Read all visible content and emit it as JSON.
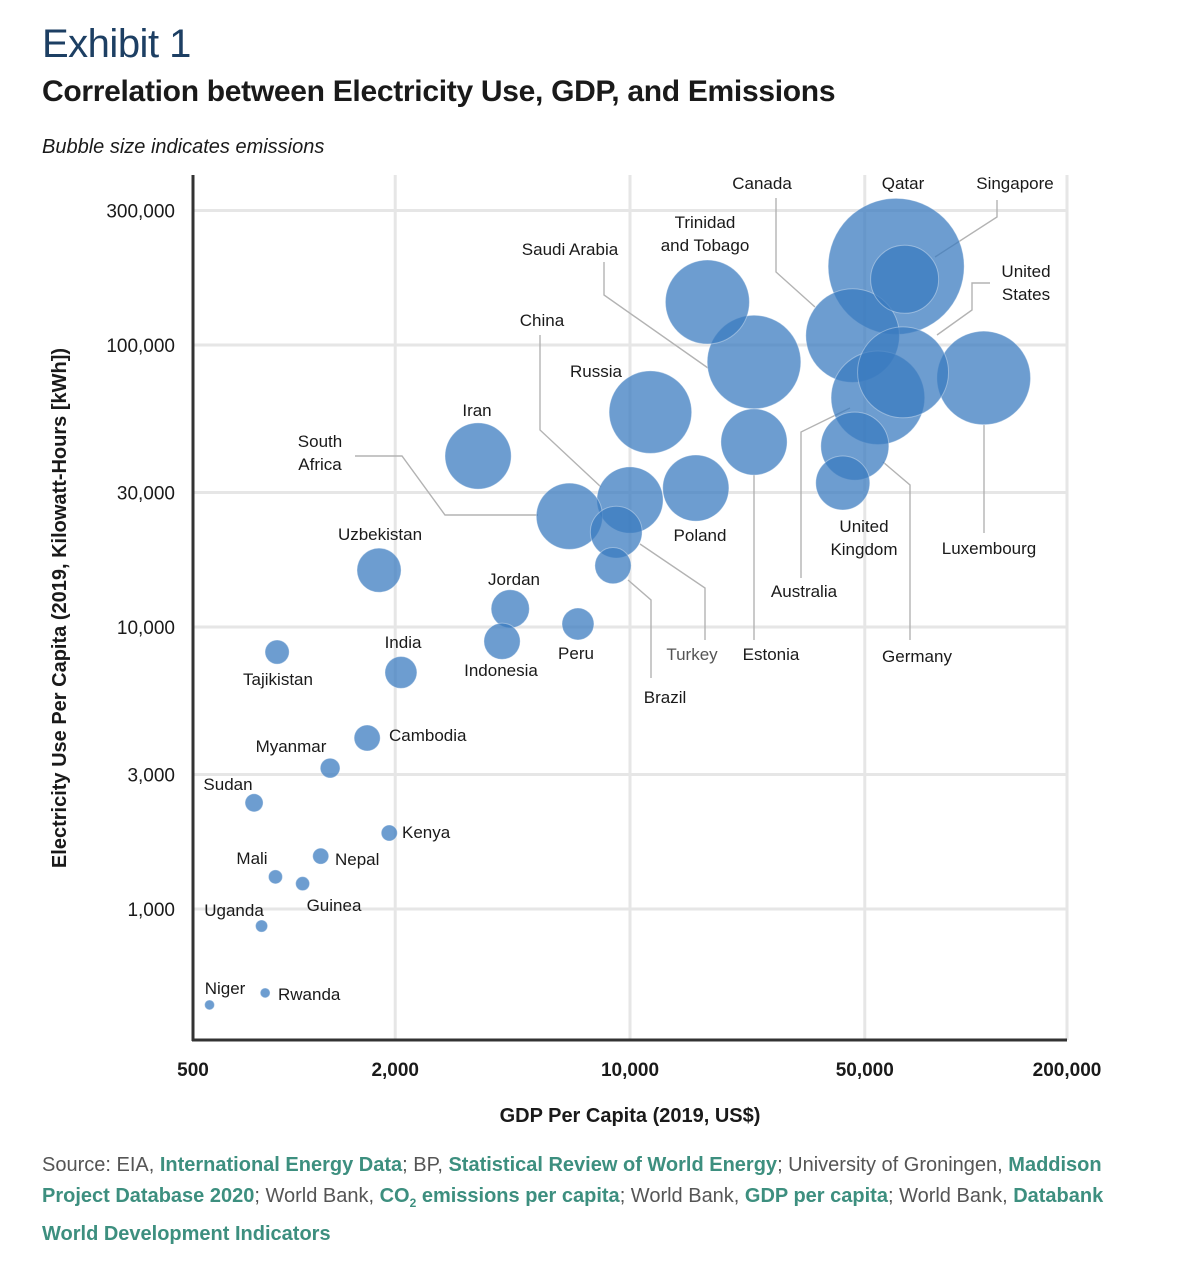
{
  "header": {
    "exhibit": "Exhibit 1",
    "title": "Correlation between Electricity Use, GDP, and Emissions",
    "subtitle": "Bubble size indicates emissions"
  },
  "colors": {
    "bubble": "#3a7bbf",
    "exhibit": "#1d3f63",
    "link": "#3d8f7f",
    "grid": "#e6e6e6",
    "axis": "#333333",
    "leader": "#b3b3b3"
  },
  "chart_data": {
    "type": "scatter",
    "subtype": "bubble",
    "title": "Correlation between Electricity Use, GDP, and Emissions",
    "subtitle": "Bubble size indicates emissions",
    "xlabel": "GDP Per Capita (2019, US$)",
    "ylabel": "Electricity Use Per Capita (2019, Kilowatt-Hours [kWh])",
    "xscale": "log",
    "yscale": "log",
    "xlim": [
      500,
      200000
    ],
    "ylim": [
      340,
      400000
    ],
    "xticks": [
      500,
      2000,
      10000,
      50000,
      200000
    ],
    "xtick_labels": [
      "500",
      "2,000",
      "10,000",
      "50,000",
      "200,000"
    ],
    "yticks": [
      1000,
      3000,
      10000,
      30000,
      100000,
      300000
    ],
    "ytick_labels": [
      "1,000",
      "3,000",
      "10,000",
      "30,000",
      "100,000",
      "300,000"
    ],
    "grid": true,
    "size_note": "bubble area proportional to emissions (relative, estimated)",
    "points": [
      {
        "name": "Qatar",
        "gdp": 62000,
        "kwh": 190000,
        "emissions": 38
      },
      {
        "name": "Singapore",
        "gdp": 65700,
        "kwh": 171000,
        "emissions": 9.5
      },
      {
        "name": "Canada",
        "gdp": 46000,
        "kwh": 108000,
        "emissions": 18
      },
      {
        "name": "United States",
        "gdp": 65000,
        "kwh": 80000,
        "emissions": 17
      },
      {
        "name": "Australia",
        "gdp": 54700,
        "kwh": 65000,
        "emissions": 18
      },
      {
        "name": "Germany",
        "gdp": 46700,
        "kwh": 43800,
        "emissions": 9.5
      },
      {
        "name": "United Kingdom",
        "gdp": 43000,
        "kwh": 32400,
        "emissions": 6
      },
      {
        "name": "Luxembourg",
        "gdp": 113000,
        "kwh": 76400,
        "emissions": 18
      },
      {
        "name": "Trinidad and Tobago",
        "gdp": 17000,
        "kwh": 142000,
        "emissions": 14.5
      },
      {
        "name": "Saudi Arabia",
        "gdp": 23400,
        "kwh": 87000,
        "emissions": 18
      },
      {
        "name": "Russia",
        "gdp": 11500,
        "kwh": 57800,
        "emissions": 14
      },
      {
        "name": "Estonia",
        "gdp": 23400,
        "kwh": 45300,
        "emissions": 9
      },
      {
        "name": "Iran",
        "gdp": 3530,
        "kwh": 40400,
        "emissions": 9
      },
      {
        "name": "China",
        "gdp": 10000,
        "kwh": 28200,
        "emissions": 9
      },
      {
        "name": "South Africa",
        "gdp": 6600,
        "kwh": 24700,
        "emissions": 9
      },
      {
        "name": "Poland",
        "gdp": 15700,
        "kwh": 31100,
        "emissions": 9
      },
      {
        "name": "Turkey",
        "gdp": 9100,
        "kwh": 21700,
        "emissions": 5.5
      },
      {
        "name": "Brazil",
        "gdp": 8900,
        "kwh": 16500,
        "emissions": 2.7
      },
      {
        "name": "Uzbekistan",
        "gdp": 1790,
        "kwh": 15900,
        "emissions": 4
      },
      {
        "name": "Jordan",
        "gdp": 4400,
        "kwh": 11600,
        "emissions": 3
      },
      {
        "name": "Indonesia",
        "gdp": 4160,
        "kwh": 8900,
        "emissions": 2.7
      },
      {
        "name": "Peru",
        "gdp": 7000,
        "kwh": 10250,
        "emissions": 2.1
      },
      {
        "name": "India",
        "gdp": 2080,
        "kwh": 6900,
        "emissions": 2.1
      },
      {
        "name": "Tajikistan",
        "gdp": 890,
        "kwh": 8150,
        "emissions": 1.2
      },
      {
        "name": "Cambodia",
        "gdp": 1650,
        "kwh": 4040,
        "emissions": 1.4
      },
      {
        "name": "Myanmar",
        "gdp": 1280,
        "kwh": 3160,
        "emissions": 0.8
      },
      {
        "name": "Sudan",
        "gdp": 760,
        "kwh": 2380,
        "emissions": 0.67
      },
      {
        "name": "Kenya",
        "gdp": 1920,
        "kwh": 1860,
        "emissions": 0.53
      },
      {
        "name": "Nepal",
        "gdp": 1200,
        "kwh": 1540,
        "emissions": 0.53
      },
      {
        "name": "Mali",
        "gdp": 880,
        "kwh": 1300,
        "emissions": 0.4
      },
      {
        "name": "Guinea",
        "gdp": 1060,
        "kwh": 1230,
        "emissions": 0.4
      },
      {
        "name": "Uganda",
        "gdp": 800,
        "kwh": 870,
        "emissions": 0.3
      },
      {
        "name": "Rwanda",
        "gdp": 820,
        "kwh": 504,
        "emissions": 0.2
      },
      {
        "name": "Niger",
        "gdp": 560,
        "kwh": 457,
        "emissions": 0.2
      }
    ]
  },
  "source": {
    "segments": [
      {
        "text": "Source: EIA, ",
        "link": false
      },
      {
        "text": "International Energy Data",
        "link": true
      },
      {
        "text": "; BP, ",
        "link": false
      },
      {
        "text": "Statistical Review of World Energy",
        "link": true
      },
      {
        "text": "; University of Groningen, ",
        "link": false
      },
      {
        "text": "Maddison Project Database 2020",
        "link": true
      },
      {
        "text": "; World Bank, ",
        "link": false
      },
      {
        "text": "CO",
        "link": true
      },
      {
        "text": "2",
        "link": true,
        "sub": true
      },
      {
        "text": " emissions per capita",
        "link": true
      },
      {
        "text": "; World Bank, ",
        "link": false
      },
      {
        "text": "GDP per capita",
        "link": true
      },
      {
        "text": "; World Bank, ",
        "link": false
      },
      {
        "text": "Databank World Development Indicators",
        "link": true
      }
    ]
  }
}
